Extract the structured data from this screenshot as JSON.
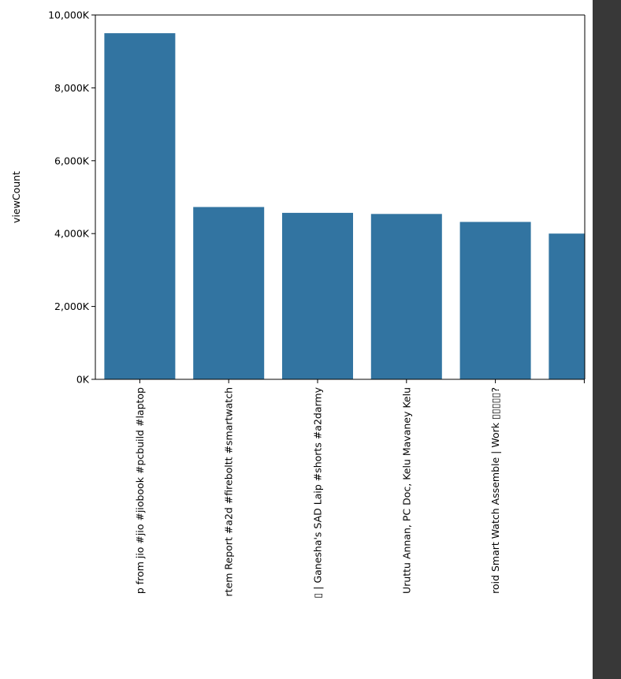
{
  "theme": {
    "bar_color": "#3274a1",
    "axis_color": "#000000",
    "side_panel_color": "#383838"
  },
  "chart_data": {
    "type": "bar",
    "ylabel": "viewCount",
    "xlabel": "",
    "ylim": [
      0,
      10000000
    ],
    "yticks": [
      {
        "value": 0,
        "label": "0K"
      },
      {
        "value": 2000000,
        "label": "2,000K"
      },
      {
        "value": 4000000,
        "label": "4,000K"
      },
      {
        "value": 6000000,
        "label": "6,000K"
      },
      {
        "value": 8000000,
        "label": "8,000K"
      },
      {
        "value": 10000000,
        "label": "10,000K"
      }
    ],
    "categories": [
      "p from jio #jio #jiobook #pcbuild #laptop",
      "rtem Report #a2d #fireboltt #smartwatch",
      "▯ | Ganesha's SAD Laip #shorts #a2darmy",
      "Uruttu Annan, PC Doc, Kelu Mavaney Kelu",
      "roid Smart Watch Assemble | Work ▯▯▯▯▯?",
      ""
    ],
    "values": [
      9500000,
      4730000,
      4570000,
      4540000,
      4320000,
      4000000
    ]
  }
}
